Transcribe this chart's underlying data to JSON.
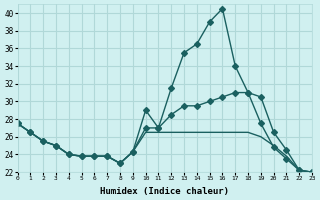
{
  "xlabel": "Humidex (Indice chaleur)",
  "ylabel": "",
  "bg_color": "#d0f0f0",
  "grid_color": "#b0d8d8",
  "line_color": "#1a6060",
  "xlim": [
    0,
    23
  ],
  "ylim": [
    22,
    41
  ],
  "yticks": [
    22,
    24,
    26,
    28,
    30,
    32,
    34,
    36,
    38,
    40
  ],
  "xticks": [
    0,
    1,
    2,
    3,
    4,
    5,
    6,
    7,
    8,
    9,
    10,
    11,
    12,
    13,
    14,
    15,
    16,
    17,
    18,
    19,
    20,
    21,
    22,
    23
  ],
  "series": [
    {
      "x": [
        0,
        1,
        2,
        3,
        4,
        5,
        6,
        7,
        8,
        9,
        10,
        11,
        12,
        13,
        14,
        15,
        16,
        17,
        18,
        19,
        20,
        21,
        22,
        23
      ],
      "y": [
        27.5,
        26.5,
        25.5,
        25.0,
        24.0,
        23.8,
        23.8,
        23.8,
        23.0,
        24.3,
        29.0,
        27.0,
        31.5,
        35.5,
        36.5,
        39.0,
        40.5,
        34.0,
        31.0,
        27.5,
        24.8,
        23.5,
        22.2,
        22.0
      ],
      "marker": "D",
      "markersize": 3
    },
    {
      "x": [
        0,
        1,
        2,
        3,
        4,
        5,
        6,
        7,
        8,
        9,
        10,
        11,
        12,
        13,
        14,
        15,
        16,
        17,
        18,
        19,
        20,
        21,
        22,
        23
      ],
      "y": [
        27.5,
        26.5,
        25.5,
        25.0,
        24.0,
        23.8,
        23.8,
        23.8,
        23.0,
        24.3,
        27.0,
        27.0,
        28.5,
        29.5,
        29.5,
        30.0,
        30.5,
        31.0,
        31.0,
        30.5,
        26.5,
        24.5,
        22.2,
        22.0
      ],
      "marker": "D",
      "markersize": 3
    },
    {
      "x": [
        0,
        1,
        2,
        3,
        4,
        5,
        6,
        7,
        8,
        9,
        10,
        11,
        12,
        13,
        14,
        15,
        16,
        17,
        18,
        19,
        20,
        21,
        22,
        23
      ],
      "y": [
        27.5,
        26.5,
        25.5,
        25.0,
        24.0,
        23.8,
        23.8,
        23.8,
        23.0,
        24.3,
        26.5,
        26.5,
        26.5,
        26.5,
        26.5,
        26.5,
        26.5,
        26.5,
        26.5,
        26.0,
        25.0,
        23.8,
        22.2,
        22.0
      ],
      "marker": null,
      "markersize": 0
    }
  ]
}
